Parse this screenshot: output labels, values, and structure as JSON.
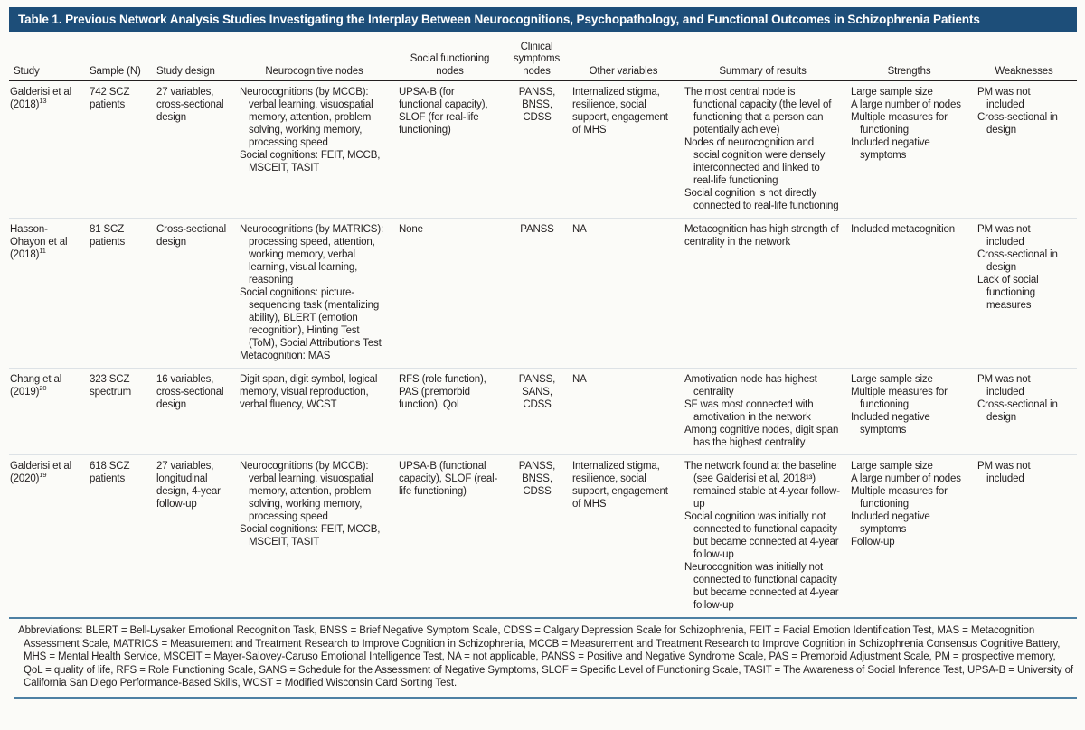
{
  "title": "Table 1. Previous Network Analysis Studies Investigating the Interplay Between Neurocognitions, Psychopathology, and Functional Outcomes in Schizophrenia Patients",
  "columns": [
    {
      "key": "study",
      "label": "Study",
      "align": "l"
    },
    {
      "key": "sample",
      "label": "Sample (N)",
      "align": "l"
    },
    {
      "key": "design",
      "label": "Study design",
      "align": "l"
    },
    {
      "key": "neuro",
      "label": "Neurocognitive nodes",
      "align": "c"
    },
    {
      "key": "social",
      "label": "Social functioning nodes",
      "align": "c"
    },
    {
      "key": "clinical",
      "label": "Clinical symptoms nodes",
      "align": "c"
    },
    {
      "key": "other",
      "label": "Other variables",
      "align": "c"
    },
    {
      "key": "summary",
      "label": "Summary of results",
      "align": "c"
    },
    {
      "key": "strengths",
      "label": "Strengths",
      "align": "c"
    },
    {
      "key": "weaknesses",
      "label": "Weaknesses",
      "align": "c"
    }
  ],
  "rows": [
    {
      "study": {
        "text": "Galderisi et al (2018)",
        "sup": "13"
      },
      "sample": "742 SCZ patients",
      "design": "27 variables, cross-sectional design",
      "neuro": {
        "items": [
          "Neurocognitions (by MCCB): verbal learning, visuospatial memory, attention, problem solving, working memory, processing speed",
          "Social cognitions: FEIT, MCCB, MSCEIT, TASIT"
        ]
      },
      "social": {
        "text": "UPSA-B (for functional capacity), SLOF (for real-life functioning)"
      },
      "clinical": {
        "lines": [
          "PANSS,",
          "BNSS,",
          "CDSS"
        ]
      },
      "other": {
        "text": "Internalized stigma, resilience, social support, engagement of MHS"
      },
      "summary": {
        "items": [
          "The most central node is functional capacity (the level of functioning that a person can potentially achieve)",
          "Nodes of neurocognition and social cognition were densely interconnected and linked to real-life functioning",
          "Social cognition is not directly connected to real-life functioning"
        ]
      },
      "strengths": {
        "items": [
          "Large sample size",
          "A large number of nodes",
          "Multiple measures for functioning",
          "Included negative symptoms"
        ]
      },
      "weaknesses": {
        "items": [
          "PM was not included",
          "Cross-sectional in design"
        ]
      }
    },
    {
      "study": {
        "text": "Hasson-Ohayon et al (2018)",
        "sup": "11"
      },
      "sample": "81 SCZ patients",
      "design": "Cross-sectional design",
      "neuro": {
        "items": [
          "Neurocognitions (by MATRICS): processing speed, attention, working memory, verbal learning, visual learning, reasoning",
          "Social cognitions: picture-sequencing task (mentalizing ability), BLERT (emotion recognition), Hinting Test (ToM), Social Attributions Test",
          "Metacognition: MAS"
        ]
      },
      "social": {
        "text": "None"
      },
      "clinical": {
        "lines": [
          "PANSS"
        ]
      },
      "other": {
        "text": "NA"
      },
      "summary": {
        "items": [
          "Metacognition has high strength of centrality in the network"
        ],
        "hang": false
      },
      "strengths": {
        "items": [
          "Included metacognition"
        ]
      },
      "weaknesses": {
        "items": [
          "PM was not included",
          "Cross-sectional in design",
          "Lack of social functioning measures"
        ]
      }
    },
    {
      "study": {
        "text": "Chang et al (2019)",
        "sup": "20"
      },
      "sample": "323 SCZ spectrum",
      "design": "16 variables, cross-sectional design",
      "neuro": {
        "items": [
          "Digit span, digit symbol, logical memory, visual reproduction, verbal fluency, WCST"
        ],
        "hang": false
      },
      "social": {
        "text": "RFS (role function), PAS (premorbid function), QoL"
      },
      "clinical": {
        "lines": [
          "PANSS,",
          "SANS,",
          "CDSS"
        ]
      },
      "other": {
        "text": "NA"
      },
      "summary": {
        "items": [
          "Amotivation node has highest centrality",
          "SF was most connected with amotivation in the network",
          "Among cognitive nodes, digit span has the highest centrality"
        ]
      },
      "strengths": {
        "items": [
          "Large sample size",
          "Multiple measures for functioning",
          "Included negative symptoms"
        ]
      },
      "weaknesses": {
        "items": [
          "PM was not included",
          "Cross-sectional in design"
        ]
      }
    },
    {
      "study": {
        "text": "Galderisi et al (2020)",
        "sup": "19"
      },
      "sample": "618 SCZ patients",
      "design": "27 variables, longitudinal design, 4-year follow-up",
      "neuro": {
        "items": [
          "Neurocognitions (by MCCB): verbal learning, visuospatial memory, attention, problem solving, working memory, processing speed",
          "Social cognitions: FEIT, MCCB, MSCEIT, TASIT"
        ]
      },
      "social": {
        "text": "UPSA-B (functional capacity), SLOF (real-life functioning)"
      },
      "clinical": {
        "lines": [
          "PANSS,",
          "BNSS,",
          "CDSS"
        ]
      },
      "other": {
        "text": "Internalized stigma, resilience, social support, engagement of MHS"
      },
      "summary": {
        "items": [
          "The network found at the baseline (see Galderisi et al, 2018¹³) remained stable at 4-year follow-up",
          "Social cognition was initially not connected to functional capacity but became connected at 4-year follow-up",
          "Neurocognition was initially not connected to functional capacity but became connected at 4-year follow-up"
        ]
      },
      "strengths": {
        "items": [
          "Large sample size",
          "A large number of nodes",
          "Multiple measures for functioning",
          "Included negative symptoms",
          "Follow-up"
        ]
      },
      "weaknesses": {
        "items": [
          "PM was not included"
        ]
      }
    }
  ],
  "footnote": "Abbreviations: BLERT = Bell-Lysaker Emotional Recognition Task, BNSS = Brief Negative Symptom Scale, CDSS = Calgary Depression Scale for Schizophrenia, FEIT = Facial Emotion Identification Test, MAS = Metacognition Assessment Scale, MATRICS = Measurement and Treatment Research to Improve Cognition in Schizophrenia, MCCB = Measurement and Treatment Research to Improve Cognition in Schizophrenia Consensus Cognitive Battery, MHS = Mental Health Service, MSCEIT = Mayer-Salovey-Caruso Emotional Intelligence Test, NA = not applicable, PANSS = Positive and Negative Syndrome Scale, PAS = Premorbid Adjustment Scale, PM = prospective memory, QoL = quality of life, RFS = Role Functioning Scale, SANS = Schedule for the Assessment of Negative Symptoms, SLOF = Specific Level of Functioning Scale, TASIT = The Awareness of Social Inference Test, UPSA-B = University of California San Diego Performance-Based Skills, WCST = Modified Wisconsin Card Sorting Test.",
  "colors": {
    "title_bg": "#1d4e79",
    "title_text": "#ffffff",
    "body_text": "#231f20",
    "rule_blue": "#4d80a3",
    "row_separator": "#dde2e6"
  }
}
